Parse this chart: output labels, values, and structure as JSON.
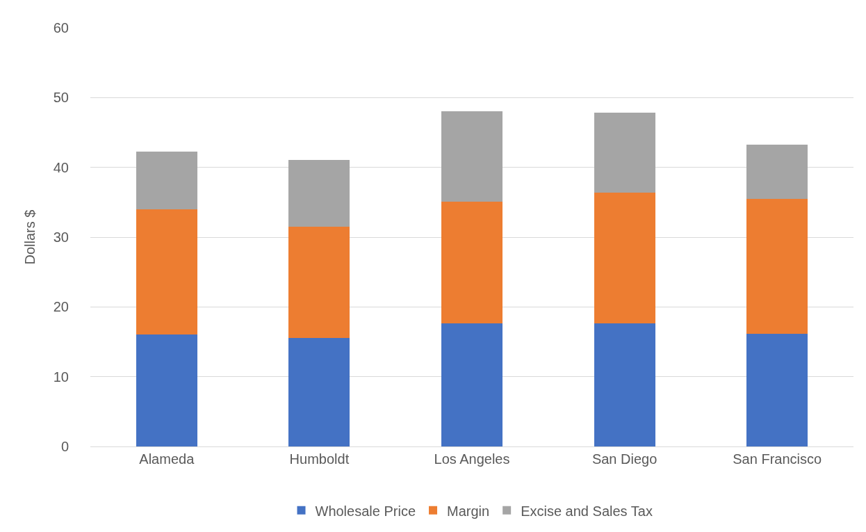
{
  "chart_data": {
    "type": "bar",
    "stacked": true,
    "ylabel": "Dollars $",
    "categories": [
      "Alameda",
      "Humboldt",
      "Los Angeles",
      "San Diego",
      "San Francisco"
    ],
    "series": [
      {
        "name": "Wholesale Price",
        "color": "#4472c4",
        "values": [
          16.0,
          15.5,
          17.6,
          17.6,
          16.1
        ]
      },
      {
        "name": "Margin",
        "color": "#ed7d31",
        "values": [
          18.0,
          16.0,
          17.5,
          18.8,
          19.4
        ]
      },
      {
        "name": "Excise and Sales Tax",
        "color": "#a5a5a5",
        "values": [
          8.3,
          9.6,
          12.9,
          11.4,
          7.8
        ]
      }
    ],
    "ylim": [
      0,
      60
    ],
    "yticks": [
      0,
      10,
      20,
      30,
      40,
      50,
      60
    ],
    "grid": "y",
    "legend": "bottom"
  }
}
